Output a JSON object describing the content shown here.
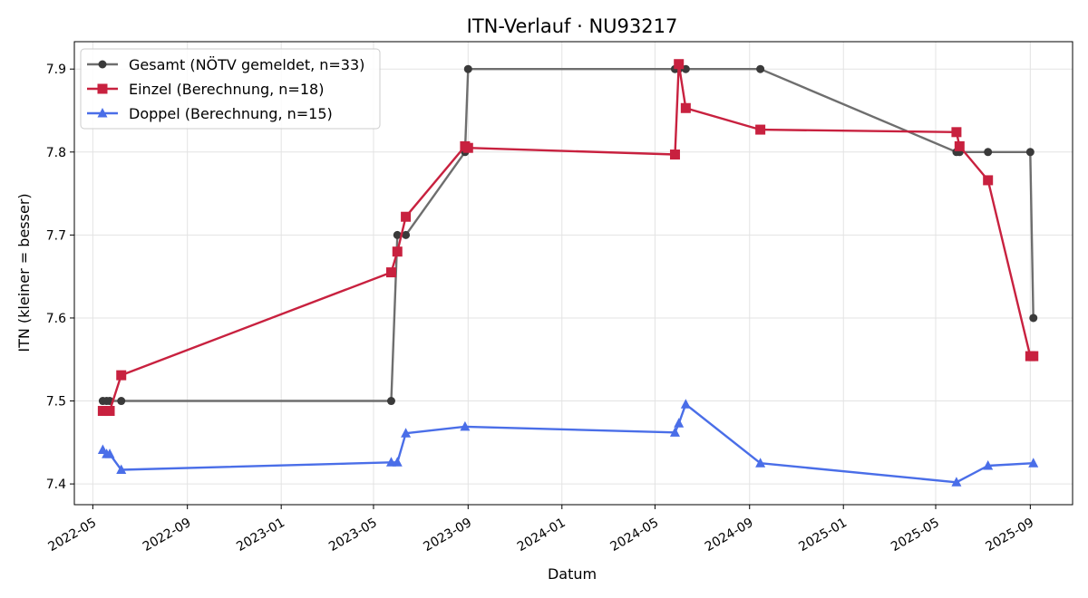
{
  "chart_data": {
    "type": "line",
    "title": "ITN-Verlauf · NU93217",
    "xlabel": "Datum",
    "ylabel": "ITN  (kleiner = besser)",
    "xlim": [
      "2022-04-07",
      "2025-10-26"
    ],
    "ylim": [
      7.375,
      7.933
    ],
    "x_ticks": [
      "2022-05",
      "2022-09",
      "2023-01",
      "2023-05",
      "2023-09",
      "2024-01",
      "2024-05",
      "2024-09",
      "2025-01",
      "2025-05",
      "2025-09"
    ],
    "y_ticks": [
      7.4,
      7.5,
      7.6,
      7.7,
      7.8,
      7.9
    ],
    "grid": true,
    "legend_position": "top-left",
    "series": [
      {
        "name": "Gesamt (NÖTV gemeldet, n=33)",
        "color": "#6e6e6e",
        "marker": "circle",
        "points": [
          {
            "x": "2022-05-14",
            "y": 7.5
          },
          {
            "x": "2022-05-19",
            "y": 7.5
          },
          {
            "x": "2022-05-23",
            "y": 7.5
          },
          {
            "x": "2022-06-07",
            "y": 7.5
          },
          {
            "x": "2023-05-24",
            "y": 7.5
          },
          {
            "x": "2023-06-01",
            "y": 7.7
          },
          {
            "x": "2023-06-12",
            "y": 7.7
          },
          {
            "x": "2023-08-28",
            "y": 7.8
          },
          {
            "x": "2023-09-01",
            "y": 7.9
          },
          {
            "x": "2024-05-27",
            "y": 7.9
          },
          {
            "x": "2024-06-01",
            "y": 7.9
          },
          {
            "x": "2024-06-10",
            "y": 7.9
          },
          {
            "x": "2024-09-15",
            "y": 7.9
          },
          {
            "x": "2025-05-28",
            "y": 7.8
          },
          {
            "x": "2025-06-01",
            "y": 7.8
          },
          {
            "x": "2025-07-08",
            "y": 7.8
          },
          {
            "x": "2025-09-01",
            "y": 7.8
          },
          {
            "x": "2025-09-05",
            "y": 7.6
          }
        ]
      },
      {
        "name": "Einzel (Berechnung, n=18)",
        "color": "#c8213f",
        "marker": "square",
        "points": [
          {
            "x": "2022-05-14",
            "y": 7.488
          },
          {
            "x": "2022-05-19",
            "y": 7.488
          },
          {
            "x": "2022-05-23",
            "y": 7.488
          },
          {
            "x": "2022-06-07",
            "y": 7.531
          },
          {
            "x": "2023-05-24",
            "y": 7.655
          },
          {
            "x": "2023-06-01",
            "y": 7.68
          },
          {
            "x": "2023-06-12",
            "y": 7.722
          },
          {
            "x": "2023-08-28",
            "y": 7.807
          },
          {
            "x": "2023-09-01",
            "y": 7.805
          },
          {
            "x": "2024-05-27",
            "y": 7.797
          },
          {
            "x": "2024-06-01",
            "y": 7.906
          },
          {
            "x": "2024-06-10",
            "y": 7.853
          },
          {
            "x": "2024-09-15",
            "y": 7.827
          },
          {
            "x": "2025-05-28",
            "y": 7.824
          },
          {
            "x": "2025-06-01",
            "y": 7.807
          },
          {
            "x": "2025-07-08",
            "y": 7.766
          },
          {
            "x": "2025-09-01",
            "y": 7.554
          },
          {
            "x": "2025-09-05",
            "y": 7.554
          }
        ]
      },
      {
        "name": "Doppel (Berechnung, n=15)",
        "color": "#4a6ee8",
        "marker": "triangle",
        "points": [
          {
            "x": "2022-05-14",
            "y": 7.441
          },
          {
            "x": "2022-05-19",
            "y": 7.436
          },
          {
            "x": "2022-05-23",
            "y": 7.436
          },
          {
            "x": "2022-06-07",
            "y": 7.417
          },
          {
            "x": "2023-05-24",
            "y": 7.426
          },
          {
            "x": "2023-06-01",
            "y": 7.426
          },
          {
            "x": "2023-06-12",
            "y": 7.461
          },
          {
            "x": "2023-08-28",
            "y": 7.469
          },
          {
            "x": "2024-05-27",
            "y": 7.462
          },
          {
            "x": "2024-06-01",
            "y": 7.473
          },
          {
            "x": "2024-06-10",
            "y": 7.496
          },
          {
            "x": "2024-09-15",
            "y": 7.425
          },
          {
            "x": "2025-05-28",
            "y": 7.402
          },
          {
            "x": "2025-07-08",
            "y": 7.422
          },
          {
            "x": "2025-09-05",
            "y": 7.425
          }
        ]
      }
    ]
  }
}
